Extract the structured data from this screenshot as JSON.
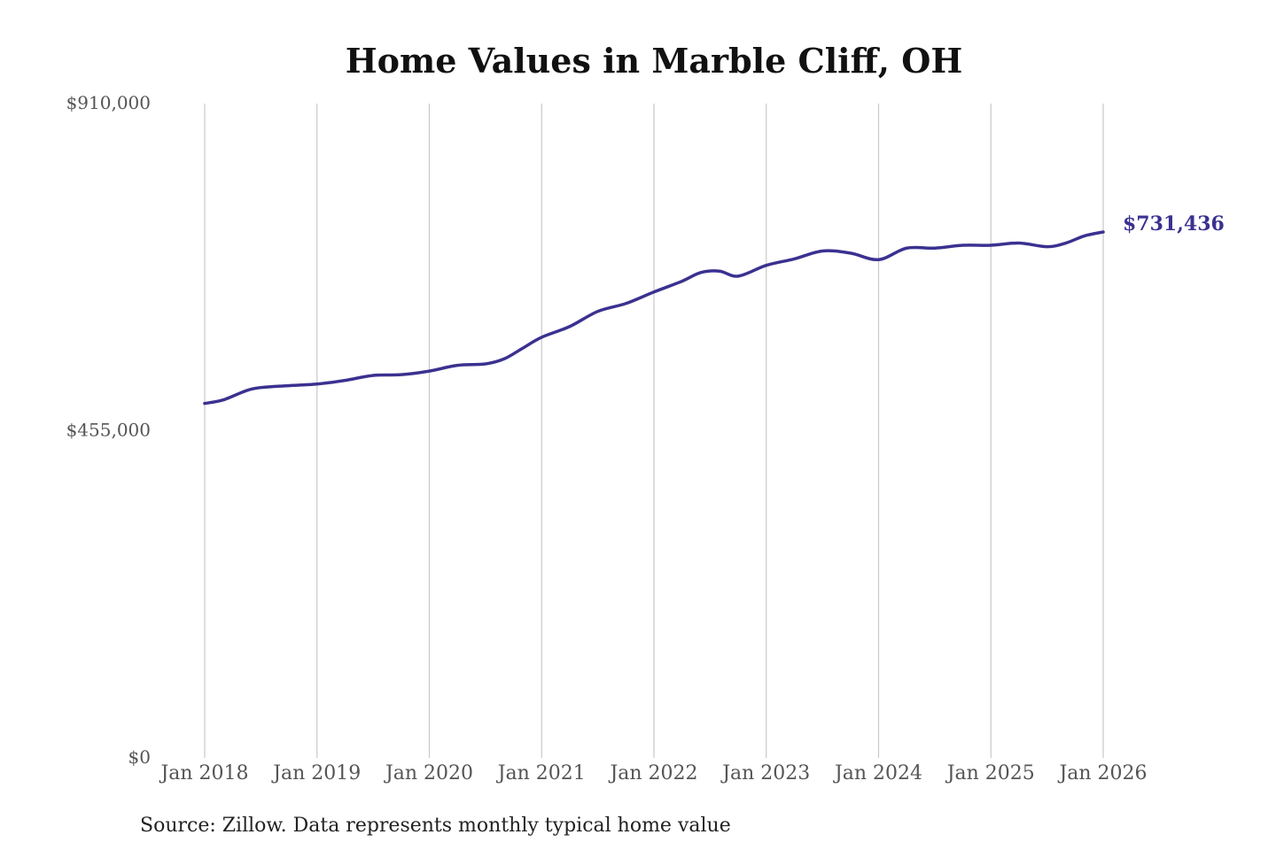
{
  "colors": {
    "series": "#3a3190",
    "grid": "#c8c8c8",
    "tick_text": "#555555",
    "title_text": "#111111"
  },
  "chart_data": {
    "type": "line",
    "title": "Home Values in Marble Cliff, OH",
    "xlabel": "",
    "ylabel": "",
    "grid": {
      "x": true,
      "y": false
    },
    "legend": "none",
    "ylim": [
      0,
      910000
    ],
    "y_ticks": [
      {
        "value": 910000,
        "label": "$910,000"
      },
      {
        "value": 455000,
        "label": "$455,000"
      },
      {
        "value": 0,
        "label": "$0"
      }
    ],
    "x_ticks": [
      {
        "value": "2018-01",
        "label": "Jan 2018"
      },
      {
        "value": "2019-01",
        "label": "Jan 2019"
      },
      {
        "value": "2020-01",
        "label": "Jan 2020"
      },
      {
        "value": "2021-01",
        "label": "Jan 2021"
      },
      {
        "value": "2022-01",
        "label": "Jan 2022"
      },
      {
        "value": "2023-01",
        "label": "Jan 2023"
      },
      {
        "value": "2024-01",
        "label": "Jan 2024"
      },
      {
        "value": "2025-01",
        "label": "Jan 2025"
      },
      {
        "value": "2026-01",
        "label": "Jan 2026"
      }
    ],
    "series": [
      {
        "end_label": "$731,436",
        "points": [
          {
            "x": "2018-01",
            "y": 493000
          },
          {
            "x": "2018-03",
            "y": 498000
          },
          {
            "x": "2018-06",
            "y": 513000
          },
          {
            "x": "2018-09",
            "y": 517000
          },
          {
            "x": "2019-01",
            "y": 520000
          },
          {
            "x": "2019-04",
            "y": 525000
          },
          {
            "x": "2019-07",
            "y": 532000
          },
          {
            "x": "2019-10",
            "y": 533000
          },
          {
            "x": "2020-01",
            "y": 538000
          },
          {
            "x": "2020-04",
            "y": 546000
          },
          {
            "x": "2020-07",
            "y": 548000
          },
          {
            "x": "2020-09",
            "y": 555000
          },
          {
            "x": "2020-11",
            "y": 570000
          },
          {
            "x": "2021-01",
            "y": 585000
          },
          {
            "x": "2021-04",
            "y": 600000
          },
          {
            "x": "2021-07",
            "y": 621000
          },
          {
            "x": "2021-10",
            "y": 632000
          },
          {
            "x": "2022-01",
            "y": 648000
          },
          {
            "x": "2022-04",
            "y": 663000
          },
          {
            "x": "2022-06",
            "y": 675000
          },
          {
            "x": "2022-08",
            "y": 677000
          },
          {
            "x": "2022-10",
            "y": 670000
          },
          {
            "x": "2023-01",
            "y": 685000
          },
          {
            "x": "2023-04",
            "y": 694000
          },
          {
            "x": "2023-07",
            "y": 705000
          },
          {
            "x": "2023-10",
            "y": 702000
          },
          {
            "x": "2024-01",
            "y": 693000
          },
          {
            "x": "2024-04",
            "y": 709000
          },
          {
            "x": "2024-07",
            "y": 709000
          },
          {
            "x": "2024-10",
            "y": 713000
          },
          {
            "x": "2025-01",
            "y": 713000
          },
          {
            "x": "2025-04",
            "y": 716000
          },
          {
            "x": "2025-07",
            "y": 711000
          },
          {
            "x": "2025-09",
            "y": 716000
          },
          {
            "x": "2025-11",
            "y": 726000
          },
          {
            "x": "2026-01",
            "y": 731436
          }
        ]
      }
    ]
  },
  "source_note": "Source: Zillow. Data represents monthly typical home value"
}
